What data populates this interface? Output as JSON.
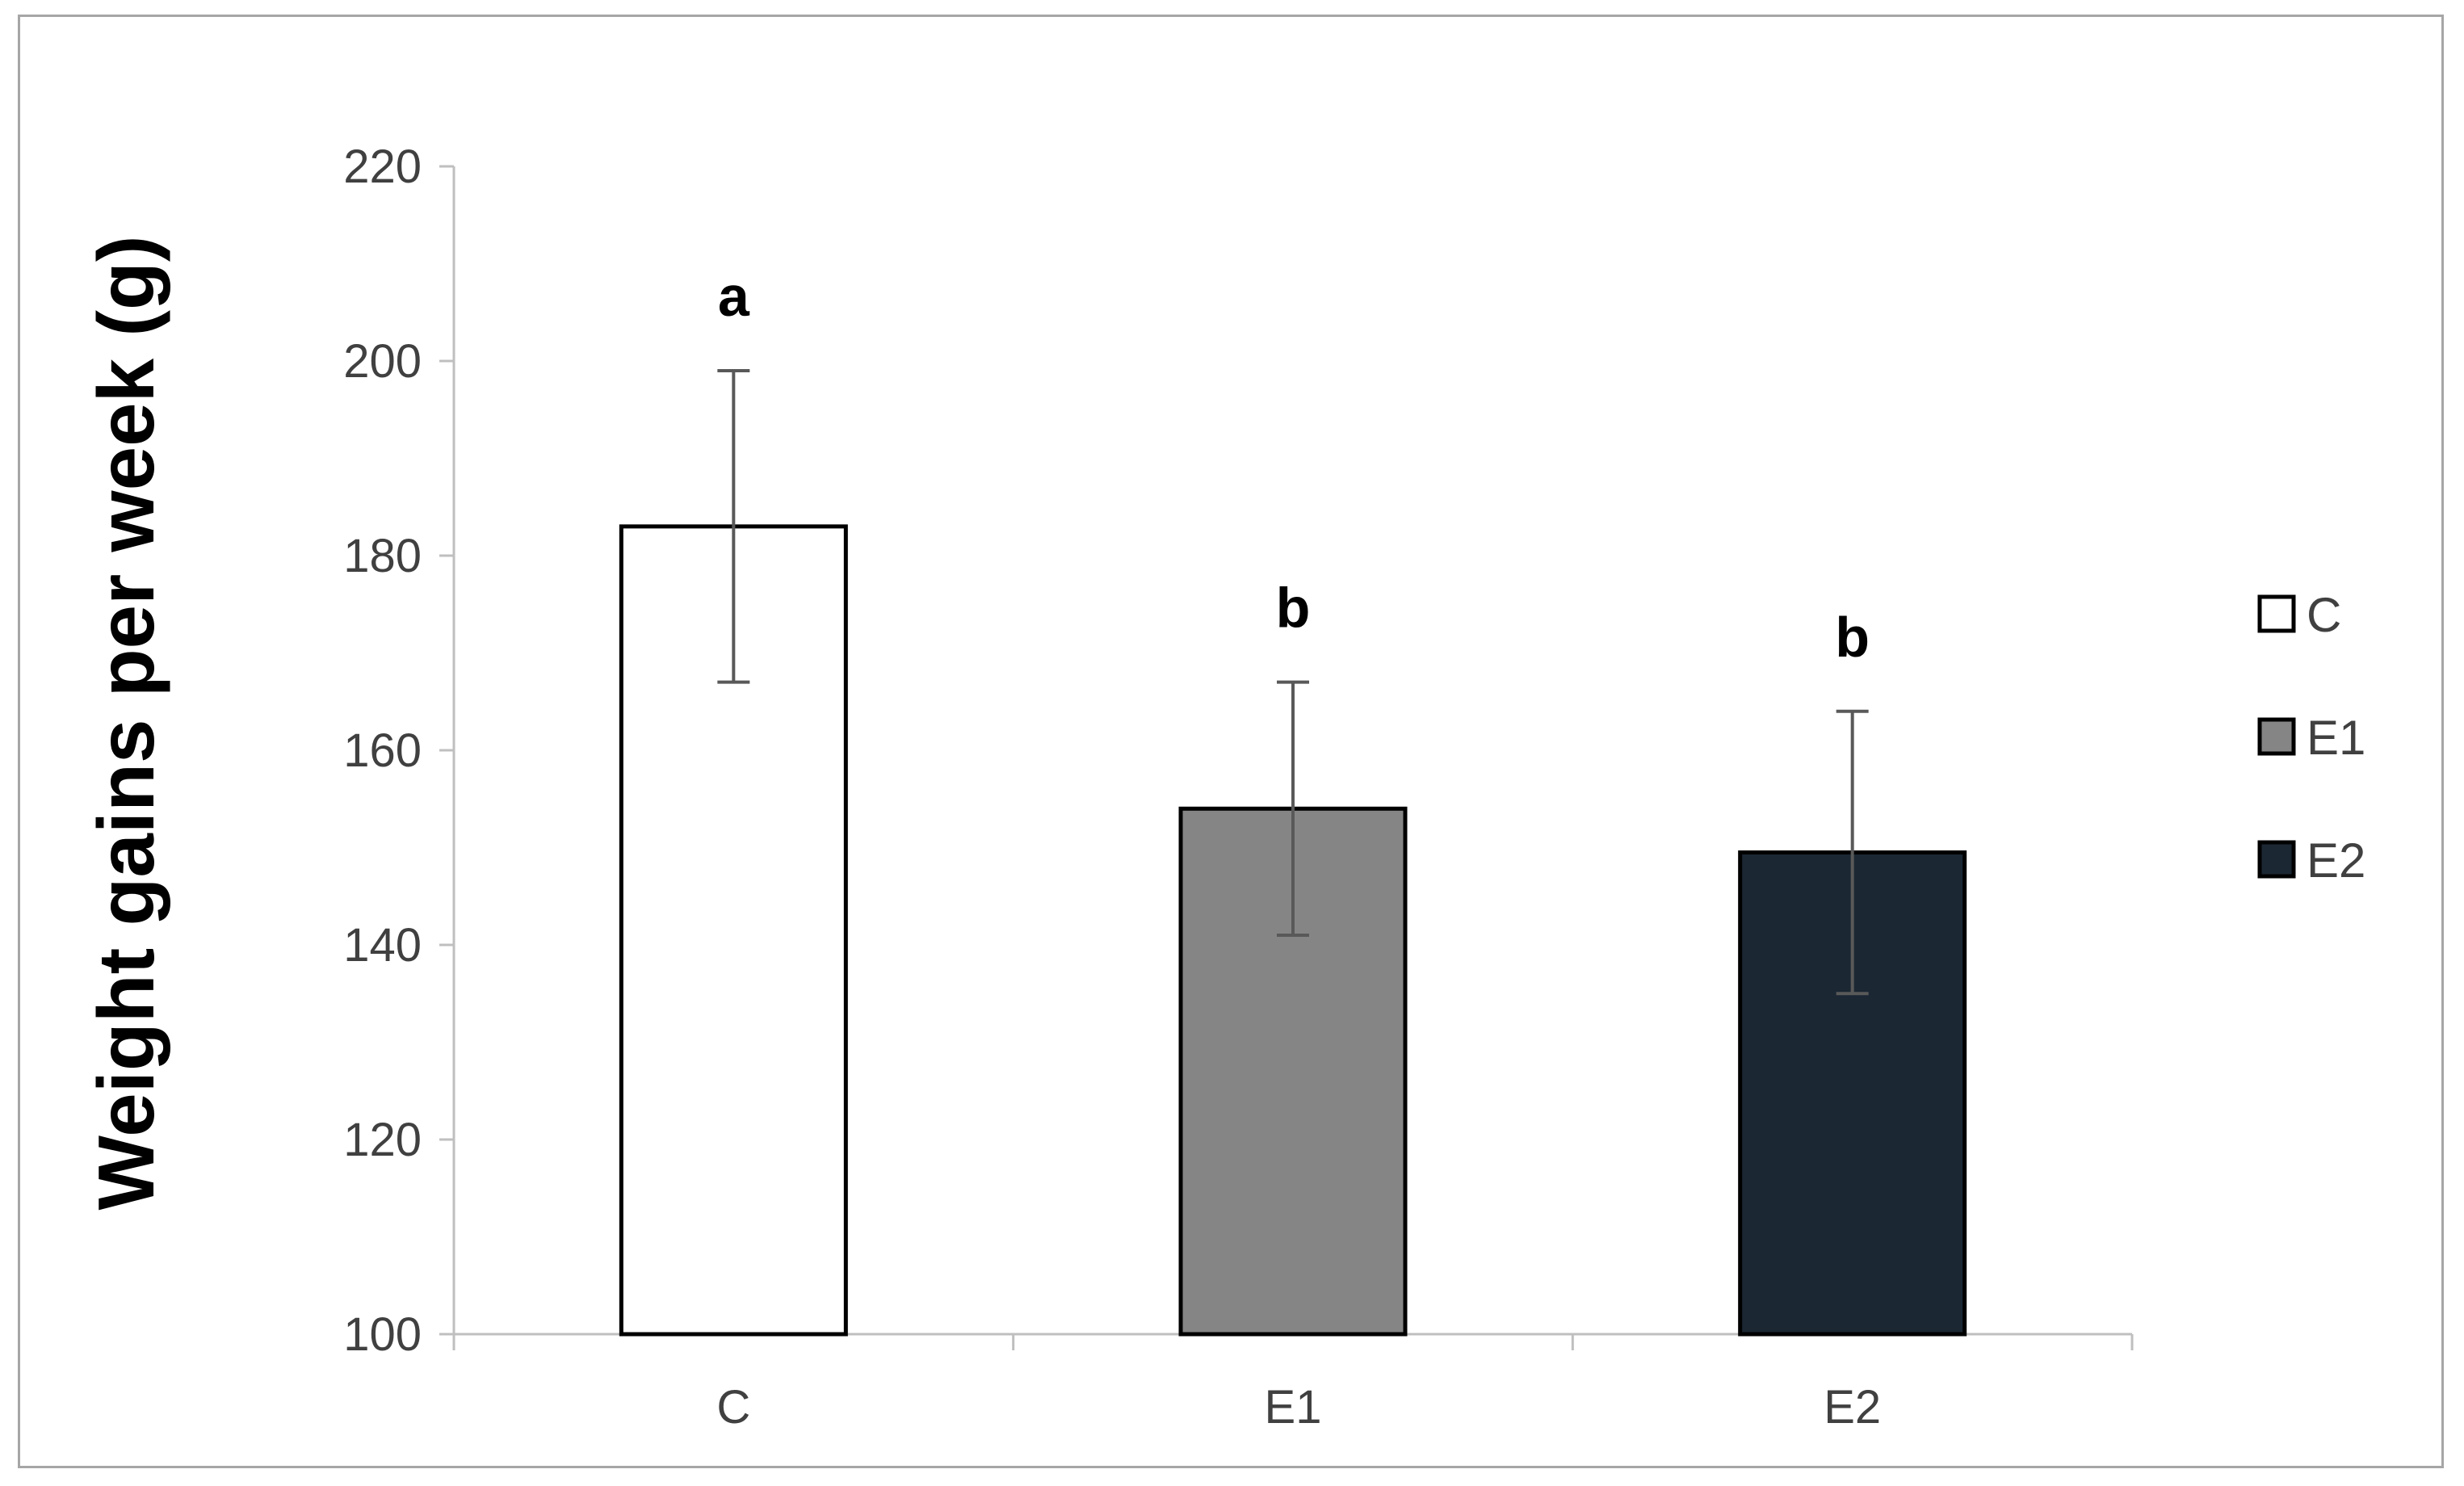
{
  "chart_data": {
    "type": "bar",
    "categories": [
      "C",
      "E1",
      "E2"
    ],
    "values": [
      183,
      154,
      149.5
    ],
    "errors": [
      16,
      13,
      14.5
    ],
    "significance_letters": [
      "a",
      "b",
      "b"
    ],
    "bar_colors": [
      "#ffffff",
      "#858585",
      "#1b2733"
    ],
    "xlabel": "",
    "ylabel": "Weight gains per week (g)",
    "ylim": [
      100,
      220
    ],
    "yticks": [
      100,
      120,
      140,
      160,
      180,
      200,
      220
    ],
    "grid": false,
    "legend": {
      "placement": "right",
      "entries": [
        {
          "label": "C",
          "color": "#ffffff"
        },
        {
          "label": "E1",
          "color": "#858585"
        },
        {
          "label": "E2",
          "color": "#1b2733"
        }
      ]
    }
  }
}
